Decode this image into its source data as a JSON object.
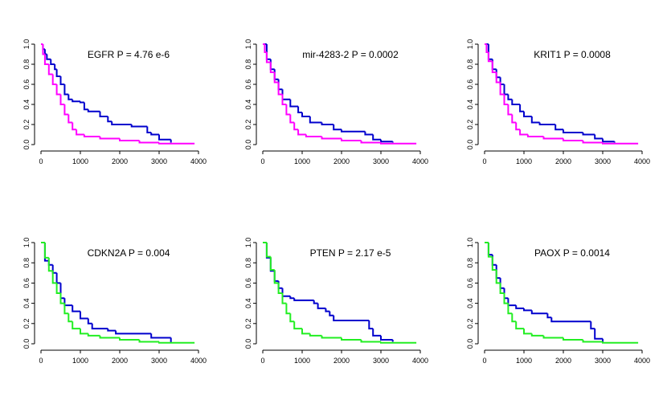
{
  "chart_data": [
    {
      "type": "line",
      "step": "post",
      "title": "EGFR  P = 4.76 e-6",
      "series": [
        {
          "color": "#0000cd",
          "x": [
            0,
            50,
            100,
            150,
            250,
            350,
            400,
            500,
            600,
            700,
            800,
            1000,
            1100,
            1200,
            1500,
            1700,
            1800,
            2300,
            2700,
            2800,
            3000,
            3300
          ],
          "values": [
            1,
            0.95,
            0.9,
            0.85,
            0.8,
            0.75,
            0.68,
            0.6,
            0.5,
            0.45,
            0.43,
            0.42,
            0.35,
            0.33,
            0.28,
            0.23,
            0.2,
            0.18,
            0.12,
            0.1,
            0.05,
            0.02
          ]
        },
        {
          "color": "#ff00ff",
          "x": [
            0,
            50,
            100,
            200,
            300,
            400,
            500,
            600,
            700,
            800,
            900,
            1100,
            1500,
            2000,
            2500,
            3000,
            3900
          ],
          "values": [
            1,
            0.9,
            0.8,
            0.7,
            0.6,
            0.5,
            0.4,
            0.3,
            0.22,
            0.15,
            0.1,
            0.08,
            0.06,
            0.04,
            0.02,
            0.01,
            0.01
          ]
        }
      ],
      "xlim": [
        0,
        4000
      ],
      "xticks": [
        0,
        1000,
        2000,
        3000,
        4000
      ],
      "ylim": [
        0,
        1
      ],
      "yticks": [
        {
          "value": 0,
          "label": "0.0"
        },
        {
          "value": 0.2,
          "label": "0.2"
        },
        {
          "value": 0.4,
          "label": "0.4"
        },
        {
          "value": 0.6,
          "label": "0.6"
        },
        {
          "value": 0.8,
          "label": "0.8"
        },
        {
          "value": 1,
          "label": "1.0"
        }
      ]
    },
    {
      "type": "line",
      "step": "post",
      "title": "mir-4283-2  P = 0.0002",
      "series": [
        {
          "color": "#0000cd",
          "x": [
            0,
            100,
            200,
            300,
            400,
            500,
            700,
            900,
            1000,
            1200,
            1500,
            1800,
            2000,
            2600,
            2800,
            3000,
            3300
          ],
          "values": [
            1,
            0.85,
            0.75,
            0.65,
            0.55,
            0.45,
            0.38,
            0.32,
            0.28,
            0.22,
            0.2,
            0.15,
            0.13,
            0.1,
            0.05,
            0.03,
            0.02
          ]
        },
        {
          "color": "#ff00ff",
          "x": [
            0,
            50,
            100,
            200,
            300,
            400,
            500,
            600,
            700,
            800,
            900,
            1100,
            1500,
            2000,
            2500,
            3000,
            3900
          ],
          "values": [
            1,
            0.92,
            0.82,
            0.72,
            0.62,
            0.5,
            0.4,
            0.3,
            0.22,
            0.15,
            0.1,
            0.08,
            0.06,
            0.04,
            0.02,
            0.01,
            0.01
          ]
        }
      ],
      "xlim": [
        0,
        4000
      ],
      "xticks": [
        0,
        1000,
        2000,
        3000,
        4000
      ],
      "ylim": [
        0,
        1
      ],
      "yticks": [
        {
          "value": 0,
          "label": "0.0"
        },
        {
          "value": 0.2,
          "label": "0.2"
        },
        {
          "value": 0.4,
          "label": "0.4"
        },
        {
          "value": 0.6,
          "label": "0.6"
        },
        {
          "value": 0.8,
          "label": "0.8"
        },
        {
          "value": 1,
          "label": "1.0"
        }
      ]
    },
    {
      "type": "line",
      "step": "post",
      "title": "KRIT1  P = 0.0008",
      "series": [
        {
          "color": "#0000cd",
          "x": [
            0,
            100,
            200,
            300,
            400,
            500,
            600,
            700,
            900,
            1000,
            1200,
            1400,
            1800,
            2000,
            2500,
            2800,
            3000,
            3300
          ],
          "values": [
            1,
            0.85,
            0.75,
            0.67,
            0.6,
            0.5,
            0.45,
            0.4,
            0.33,
            0.28,
            0.22,
            0.2,
            0.15,
            0.12,
            0.1,
            0.06,
            0.03,
            0.02
          ]
        },
        {
          "color": "#ff00ff",
          "x": [
            0,
            50,
            100,
            200,
            300,
            400,
            500,
            600,
            700,
            800,
            900,
            1100,
            1500,
            2000,
            2500,
            3000,
            3900
          ],
          "values": [
            1,
            0.92,
            0.83,
            0.72,
            0.62,
            0.5,
            0.4,
            0.3,
            0.22,
            0.15,
            0.1,
            0.08,
            0.06,
            0.04,
            0.02,
            0.01,
            0.01
          ]
        }
      ],
      "xlim": [
        0,
        4000
      ],
      "xticks": [
        0,
        1000,
        2000,
        3000,
        4000
      ],
      "ylim": [
        0,
        1
      ],
      "yticks": [
        {
          "value": 0,
          "label": "0.0"
        },
        {
          "value": 0.2,
          "label": "0.2"
        },
        {
          "value": 0.4,
          "label": "0.4"
        },
        {
          "value": 0.6,
          "label": "0.6"
        },
        {
          "value": 0.8,
          "label": "0.8"
        },
        {
          "value": 1,
          "label": "1.0"
        }
      ]
    },
    {
      "type": "line",
      "step": "post",
      "title": "CDKN2A  P = 0.004",
      "series": [
        {
          "color": "#0000cd",
          "x": [
            0,
            100,
            200,
            300,
            400,
            500,
            600,
            800,
            1000,
            1200,
            1300,
            1700,
            1900,
            2800,
            3300
          ],
          "values": [
            1,
            0.82,
            0.78,
            0.7,
            0.6,
            0.45,
            0.38,
            0.32,
            0.25,
            0.2,
            0.15,
            0.13,
            0.1,
            0.06,
            0.01
          ]
        },
        {
          "color": "#22ee22",
          "x": [
            0,
            100,
            200,
            300,
            400,
            500,
            600,
            700,
            800,
            1000,
            1200,
            1500,
            2000,
            2500,
            3000,
            3900
          ],
          "values": [
            1,
            0.85,
            0.72,
            0.6,
            0.5,
            0.4,
            0.3,
            0.22,
            0.15,
            0.1,
            0.08,
            0.06,
            0.04,
            0.02,
            0.01,
            0.01
          ]
        }
      ],
      "xlim": [
        0,
        4000
      ],
      "xticks": [
        0,
        1000,
        2000,
        3000,
        4000
      ],
      "ylim": [
        0,
        1
      ],
      "yticks": [
        {
          "value": 0,
          "label": "0.0"
        },
        {
          "value": 0.2,
          "label": "0.2"
        },
        {
          "value": 0.4,
          "label": "0.4"
        },
        {
          "value": 0.6,
          "label": "0.6"
        },
        {
          "value": 0.8,
          "label": "0.8"
        },
        {
          "value": 1,
          "label": "1.0"
        }
      ]
    },
    {
      "type": "line",
      "step": "post",
      "title": "PTEN  P = 2.17 e-5",
      "series": [
        {
          "color": "#0000cd",
          "x": [
            0,
            100,
            200,
            300,
            400,
            500,
            700,
            800,
            1300,
            1400,
            1600,
            1700,
            1800,
            2700,
            2800,
            3000,
            3300
          ],
          "values": [
            1,
            0.85,
            0.72,
            0.62,
            0.55,
            0.47,
            0.45,
            0.43,
            0.4,
            0.35,
            0.32,
            0.28,
            0.23,
            0.15,
            0.08,
            0.04,
            0.02
          ]
        },
        {
          "color": "#22ee22",
          "x": [
            0,
            100,
            200,
            300,
            400,
            500,
            600,
            700,
            800,
            1000,
            1200,
            1500,
            2000,
            2500,
            3000,
            3900
          ],
          "values": [
            1,
            0.86,
            0.73,
            0.6,
            0.5,
            0.4,
            0.3,
            0.22,
            0.15,
            0.1,
            0.08,
            0.06,
            0.04,
            0.02,
            0.01,
            0.01
          ]
        }
      ],
      "xlim": [
        0,
        4000
      ],
      "xticks": [
        0,
        1000,
        2000,
        3000,
        4000
      ],
      "ylim": [
        0,
        1
      ],
      "yticks": [
        {
          "value": 0,
          "label": "0.0"
        },
        {
          "value": 0.2,
          "label": "0.2"
        },
        {
          "value": 0.4,
          "label": "0.4"
        },
        {
          "value": 0.6,
          "label": "0.6"
        },
        {
          "value": 0.8,
          "label": "0.8"
        },
        {
          "value": 1,
          "label": "1.0"
        }
      ]
    },
    {
      "type": "line",
      "step": "post",
      "title": "PAOX  P = 0.0014",
      "series": [
        {
          "color": "#0000cd",
          "x": [
            0,
            100,
            200,
            300,
            400,
            500,
            600,
            800,
            1000,
            1200,
            1600,
            1700,
            2700,
            2800,
            3000
          ],
          "values": [
            1,
            0.88,
            0.78,
            0.65,
            0.55,
            0.45,
            0.38,
            0.35,
            0.33,
            0.3,
            0.26,
            0.22,
            0.15,
            0.05,
            0.01
          ]
        },
        {
          "color": "#22ee22",
          "x": [
            0,
            100,
            200,
            300,
            400,
            500,
            600,
            700,
            800,
            1000,
            1200,
            1500,
            2000,
            2500,
            3000,
            3900
          ],
          "values": [
            1,
            0.86,
            0.73,
            0.6,
            0.5,
            0.4,
            0.3,
            0.22,
            0.15,
            0.1,
            0.08,
            0.06,
            0.04,
            0.02,
            0.01,
            0.01
          ]
        }
      ],
      "xlim": [
        0,
        4000
      ],
      "xticks": [
        0,
        1000,
        2000,
        3000,
        4000
      ],
      "ylim": [
        0,
        1
      ],
      "yticks": [
        {
          "value": 0,
          "label": "0.0"
        },
        {
          "value": 0.2,
          "label": "0.2"
        },
        {
          "value": 0.4,
          "label": "0.4"
        },
        {
          "value": 0.6,
          "label": "0.6"
        },
        {
          "value": 0.8,
          "label": "0.8"
        },
        {
          "value": 1,
          "label": "1.0"
        }
      ]
    }
  ]
}
